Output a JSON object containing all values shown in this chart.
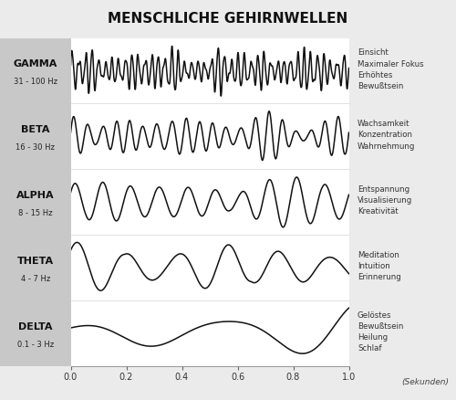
{
  "title": "MENSCHLICHE GEHIRNWELLEN",
  "title_fontsize": 11,
  "background_color": "#ebebeb",
  "wave_area_color": "#ffffff",
  "label_panel_color": "#c8c8c8",
  "waves": [
    {
      "name": "GAMMA",
      "freq_label": "31 - 100 Hz",
      "description": "Einsicht\nMaximaler Fokus\nErhöhtes\nBewußtsein",
      "freq": 42,
      "amp_base": 0.28
    },
    {
      "name": "BETA",
      "freq_label": "16 - 30 Hz",
      "description": "Wachsamkeit\nKonzentration\nWahrnehmung",
      "freq": 20,
      "amp_base": 0.38
    },
    {
      "name": "ALPHA",
      "freq_label": "8 - 15 Hz",
      "description": "Entspannung\nVisualisierung\nKreativität",
      "freq": 10,
      "amp_base": 0.62
    },
    {
      "name": "THETA",
      "freq_label": "4 - 7 Hz",
      "description": "Meditation\nIntuition\nErinnerung",
      "freq": 5.5,
      "amp_base": 0.58
    },
    {
      "name": "DELTA",
      "freq_label": "0.1 - 3 Hz",
      "description": "Gelöstes\nBewußtsein\nHeilung\nSchlaf",
      "freq": 2.0,
      "amp_base": 0.72
    }
  ],
  "xlabel": "(Sekunden)",
  "xticks": [
    0.0,
    0.2,
    0.4,
    0.6,
    0.8,
    1.0
  ],
  "line_color": "#111111",
  "line_width": 1.1
}
